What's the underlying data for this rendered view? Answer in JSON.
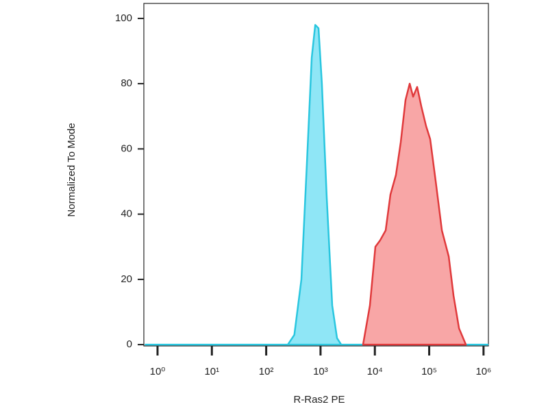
{
  "chart_data": {
    "type": "area",
    "x_label": "R-Ras2 PE",
    "y_label": "Normalized To Mode",
    "x_scale": "log",
    "xlim": [
      0.56,
      1230000
    ],
    "ylim": [
      -0.4,
      104.6
    ],
    "xticks": [
      {
        "value": 1,
        "label": "10⁰"
      },
      {
        "value": 10,
        "label": "10¹"
      },
      {
        "value": 100,
        "label": "10²"
      },
      {
        "value": 1000,
        "label": "10³"
      },
      {
        "value": 10000,
        "label": "10⁴"
      },
      {
        "value": 100000,
        "label": "10⁵"
      },
      {
        "value": 1000000,
        "label": "10⁶"
      }
    ],
    "yticks": [
      0,
      20,
      40,
      60,
      80,
      100
    ],
    "series": [
      {
        "color": "#29c6df",
        "fill": "#8fe6f6",
        "x": [
          0.6,
          250,
          330,
          445,
          560,
          690,
          800,
          920,
          1060,
          1300,
          1640,
          2010,
          2400,
          1200000
        ],
        "values": [
          0,
          0,
          3,
          20,
          55,
          88,
          98,
          97,
          80,
          45,
          12,
          2,
          0,
          0
        ]
      },
      {
        "color": "#e0393b",
        "fill": "#f8a6a6",
        "x": [
          6070,
          8110,
          10230,
          12530,
          15800,
          19360,
          24430,
          29970,
          36720,
          43740,
          50580,
          60140,
          71610,
          87700,
          104400,
          131800,
          171200,
          229000,
          280600,
          354000,
          473000
        ],
        "values": [
          0,
          12,
          30,
          32,
          35,
          46,
          52,
          62,
          75,
          80,
          76,
          79,
          73,
          67,
          63,
          50,
          35,
          27,
          15,
          5,
          0
        ]
      }
    ]
  }
}
